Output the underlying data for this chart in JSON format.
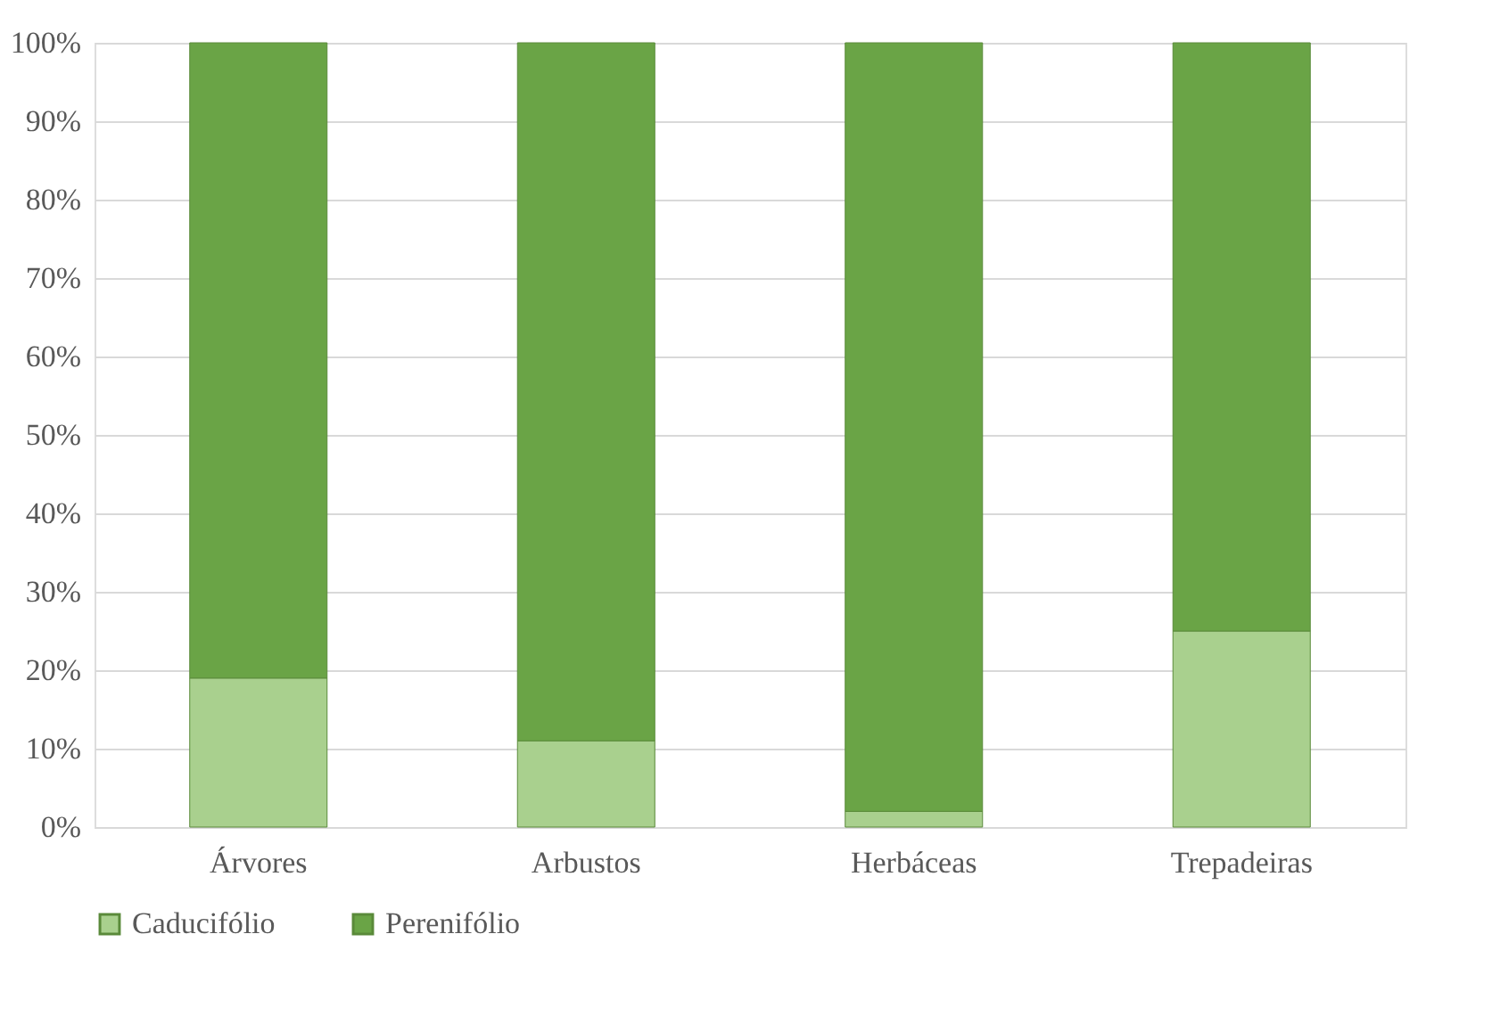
{
  "chart_data": {
    "type": "bar",
    "stacked": true,
    "categories": [
      "Árvores",
      "Arbustos",
      "Herbáceas",
      "Trepadeiras"
    ],
    "series": [
      {
        "name": "Caducifólio",
        "color": "#a9d08e",
        "values": [
          19,
          11,
          2,
          25
        ]
      },
      {
        "name": "Perenifólio",
        "color": "#6aa446",
        "values": [
          81,
          89,
          98,
          75
        ]
      }
    ],
    "ylim": [
      0,
      100
    ],
    "yticks": [
      {
        "value": 0,
        "label": "0%"
      },
      {
        "value": 10,
        "label": "10%"
      },
      {
        "value": 20,
        "label": "20%"
      },
      {
        "value": 30,
        "label": "30%"
      },
      {
        "value": 40,
        "label": "40%"
      },
      {
        "value": 50,
        "label": "50%"
      },
      {
        "value": 60,
        "label": "60%"
      },
      {
        "value": 70,
        "label": "70%"
      },
      {
        "value": 80,
        "label": "80%"
      },
      {
        "value": 90,
        "label": "90%"
      },
      {
        "value": 100,
        "label": "100%"
      }
    ],
    "grid": "y",
    "legend": "bottom"
  }
}
